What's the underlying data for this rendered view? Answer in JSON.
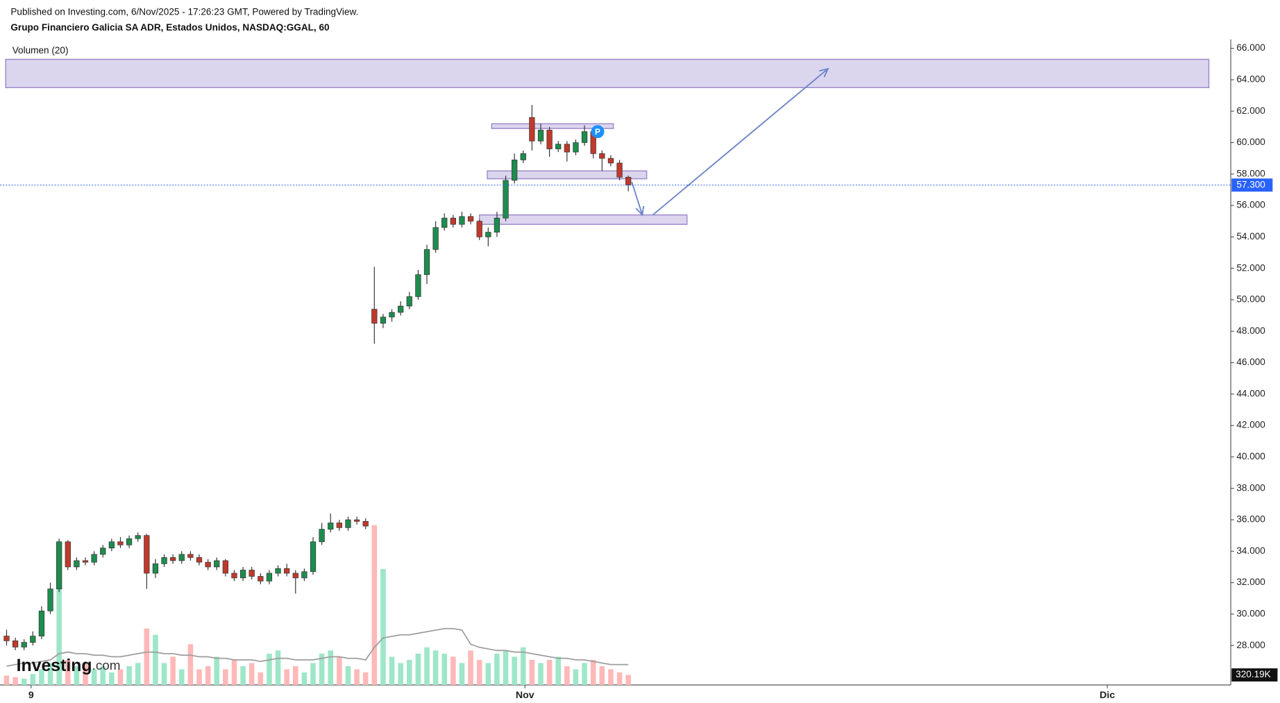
{
  "header": {
    "published": "Published on Investing.com, 6/Nov/2025 - 17:26:23 GMT, Powered by TradingView.",
    "symbol": "Grupo Financiero Galicia SA ADR, Estados Unidos, NASDAQ:GGAL, 60",
    "indicator": "Volumen (20)"
  },
  "logo": {
    "brand": "Investing",
    "suffix": ".com"
  },
  "chart_data": {
    "type": "candlestick",
    "xlim": [
      -0.75,
      139.8
    ],
    "xticks": [
      {
        "value": 2.8,
        "label": "9"
      },
      {
        "value": 59.2,
        "label": "Nov"
      },
      {
        "value": 125.7,
        "label": "Dic"
      }
    ],
    "ylim": [
      25.49,
      66.57
    ],
    "yticks": [
      {
        "value": 28,
        "label": "28.000"
      },
      {
        "value": 30,
        "label": "30.000"
      },
      {
        "value": 32,
        "label": "32.000"
      },
      {
        "value": 34,
        "label": "34.000"
      },
      {
        "value": 36,
        "label": "36.000"
      },
      {
        "value": 38,
        "label": "38.000"
      },
      {
        "value": 40,
        "label": "40.000"
      },
      {
        "value": 42,
        "label": "42.000"
      },
      {
        "value": 44,
        "label": "44.000"
      },
      {
        "value": 46,
        "label": "46.000"
      },
      {
        "value": 48,
        "label": "48.000"
      },
      {
        "value": 50,
        "label": "50.000"
      },
      {
        "value": 52,
        "label": "52.000"
      },
      {
        "value": 54,
        "label": "54.000"
      },
      {
        "value": 56,
        "label": "56.000"
      },
      {
        "value": 58,
        "label": "58.000"
      },
      {
        "value": 60,
        "label": "60.000"
      },
      {
        "value": 62,
        "label": "62.000"
      },
      {
        "value": 64,
        "label": "64.000"
      },
      {
        "value": 66,
        "label": "66.000"
      }
    ],
    "open": [
      28.6,
      28.3,
      27.9,
      28.2,
      28.6,
      30.2,
      31.6,
      34.6,
      33.0,
      33.4,
      33.3,
      33.8,
      34.2,
      34.6,
      34.4,
      34.8,
      35.0,
      32.6,
      33.2,
      33.6,
      33.4,
      33.8,
      33.6,
      33.3,
      33.0,
      33.4,
      32.6,
      32.3,
      32.8,
      32.4,
      32.1,
      32.6,
      32.9,
      32.6,
      32.3,
      32.7,
      34.6,
      35.4,
      35.8,
      35.5,
      36.0,
      35.9,
      49.4,
      48.5,
      48.9,
      49.2,
      49.6,
      50.2,
      51.6,
      53.2,
      54.6,
      55.2,
      54.8,
      55.3,
      55.0,
      54.0,
      54.3,
      55.2,
      57.6,
      58.9,
      61.6,
      60.1,
      60.8,
      59.6,
      59.9,
      59.4,
      60.0,
      60.7,
      59.3,
      59.0,
      58.7,
      57.8
    ],
    "high": [
      29.0,
      28.5,
      28.4,
      28.9,
      30.5,
      32.0,
      34.8,
      34.7,
      33.6,
      33.6,
      34.0,
      34.4,
      34.8,
      34.9,
      35.0,
      35.2,
      35.1,
      33.5,
      33.8,
      33.8,
      34.0,
      34.0,
      33.8,
      33.5,
      33.6,
      33.5,
      32.8,
      33.0,
      33.0,
      32.6,
      32.8,
      33.1,
      33.2,
      32.8,
      32.9,
      34.9,
      35.8,
      36.4,
      36.0,
      36.2,
      36.2,
      36.1,
      52.1,
      49.1,
      49.4,
      49.9,
      50.5,
      51.9,
      53.5,
      55.0,
      55.5,
      55.4,
      55.6,
      55.5,
      55.1,
      54.6,
      55.6,
      57.9,
      59.3,
      59.5,
      62.4,
      61.2,
      61.0,
      60.1,
      60.1,
      60.2,
      61.1,
      60.9,
      59.5,
      59.2,
      58.9,
      57.9
    ],
    "low": [
      28.0,
      27.7,
      27.7,
      28.0,
      28.4,
      30.0,
      31.4,
      32.8,
      32.8,
      33.1,
      33.1,
      33.6,
      34.0,
      34.2,
      34.2,
      34.6,
      31.6,
      32.3,
      33.0,
      33.2,
      33.2,
      33.4,
      33.1,
      32.8,
      32.8,
      32.4,
      32.1,
      32.1,
      32.2,
      31.9,
      31.9,
      32.4,
      32.4,
      31.3,
      32.1,
      32.5,
      34.4,
      35.2,
      35.3,
      35.3,
      35.7,
      35.4,
      47.2,
      48.2,
      48.6,
      49.0,
      49.4,
      50.0,
      51.0,
      53.0,
      54.4,
      54.6,
      54.6,
      54.8,
      53.8,
      53.4,
      54.0,
      55.0,
      57.4,
      58.7,
      59.5,
      59.9,
      59.1,
      59.4,
      58.8,
      59.2,
      59.8,
      59.0,
      58.2,
      58.5,
      57.6,
      56.9
    ],
    "close": [
      28.3,
      27.9,
      28.2,
      28.6,
      30.2,
      31.6,
      34.6,
      33.0,
      33.4,
      33.3,
      33.8,
      34.2,
      34.6,
      34.4,
      34.8,
      35.0,
      32.6,
      33.2,
      33.6,
      33.4,
      33.8,
      33.6,
      33.3,
      33.0,
      33.4,
      32.6,
      32.3,
      32.8,
      32.4,
      32.1,
      32.6,
      32.9,
      32.6,
      32.3,
      32.7,
      34.6,
      35.4,
      35.8,
      35.5,
      36.0,
      35.9,
      35.6,
      48.5,
      48.9,
      49.2,
      49.6,
      50.2,
      51.6,
      53.2,
      54.6,
      55.2,
      54.8,
      55.3,
      55.0,
      54.0,
      54.3,
      55.2,
      57.6,
      58.9,
      59.3,
      60.1,
      60.8,
      59.6,
      59.9,
      59.4,
      60.0,
      60.7,
      59.3,
      59.0,
      58.7,
      57.8,
      57.3
    ],
    "volume": [
      300,
      250,
      200,
      350,
      500,
      700,
      4500,
      800,
      600,
      700,
      500,
      600,
      400,
      500,
      600,
      700,
      1800,
      1600,
      700,
      900,
      500,
      1300,
      500,
      600,
      900,
      500,
      800,
      600,
      700,
      400,
      1000,
      1100,
      500,
      600,
      400,
      700,
      1000,
      1100,
      900,
      600,
      500,
      400,
      5100,
      3700,
      900,
      700,
      800,
      1000,
      1200,
      1100,
      1000,
      900,
      700,
      1100,
      800,
      700,
      1000,
      1100,
      900,
      1200,
      800,
      700,
      800,
      900,
      600,
      500,
      700,
      800,
      600,
      500,
      400,
      320.19
    ],
    "volume_ma": [
      600,
      650,
      700,
      700,
      750,
      800,
      1000,
      1050,
      1000,
      1000,
      950,
      950,
      900,
      900,
      950,
      1000,
      1050,
      1050,
      1000,
      1000,
      950,
      950,
      900,
      900,
      850,
      850,
      800,
      800,
      800,
      750,
      800,
      850,
      850,
      800,
      800,
      800,
      850,
      900,
      900,
      850,
      850,
      800,
      1200,
      1500,
      1550,
      1600,
      1600,
      1650,
      1700,
      1750,
      1800,
      1800,
      1750,
      1300,
      1200,
      1150,
      1100,
      1100,
      1050,
      1050,
      1000,
      950,
      900,
      850,
      850,
      800,
      800,
      750,
      700,
      650,
      650,
      650
    ],
    "vlim": [
      0,
      20600
    ],
    "up_color": "#1e8c4e",
    "down_color": "#c0392b",
    "volume_up_color": "#9ee6c8",
    "volume_down_color": "#ffb8b8",
    "ma_color": "#9e9e9e",
    "last_price": {
      "value": 57.3,
      "label": "57.300"
    },
    "last_volume": {
      "value": 320.19,
      "label": "320.19K"
    },
    "zones": [
      {
        "x": [
          -0.1,
          137.3
        ],
        "y": [
          63.5,
          65.3
        ]
      },
      {
        "x": [
          55.4,
          69.3
        ],
        "y": [
          60.9,
          61.2
        ]
      },
      {
        "x": [
          54.9,
          73.1
        ],
        "y": [
          57.7,
          58.2
        ]
      },
      {
        "x": [
          54.0,
          77.7
        ],
        "y": [
          54.8,
          55.4
        ]
      }
    ],
    "zone_color": "#d8d0ec",
    "zone_stroke": "#9a86c8",
    "arrows": [
      {
        "x": [
          71.4,
          72.6
        ],
        "y": [
          57.5,
          55.4
        ]
      },
      {
        "x": [
          73.8,
          93.8
        ],
        "y": [
          55.4,
          64.7
        ]
      }
    ],
    "arrow_color": "#6b86c9",
    "marker": {
      "x": 67.5,
      "y": 60.7,
      "label": "P"
    }
  }
}
